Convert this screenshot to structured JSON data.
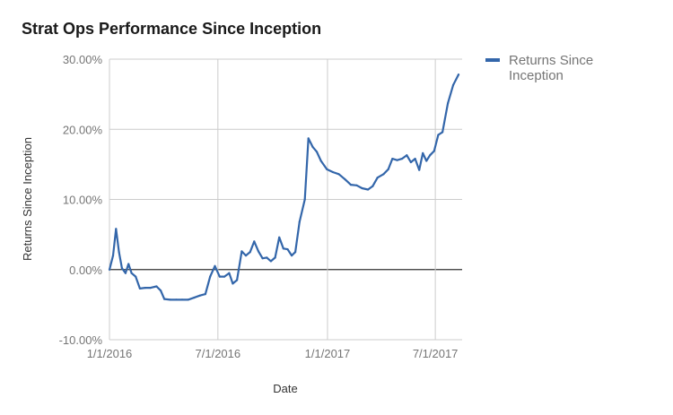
{
  "chart_data": {
    "type": "line",
    "title": "Strat Ops Performance Since Inception",
    "xlabel": "Date",
    "ylabel": "Returns Since Inception",
    "ylim": [
      -10,
      30
    ],
    "y_ticks": [
      "-10.00%",
      "0.00%",
      "10.00%",
      "20.00%",
      "30.00%"
    ],
    "x_ticks": [
      "1/1/2016",
      "7/1/2016",
      "1/1/2017",
      "7/1/2017"
    ],
    "x_range": [
      "2016-01-01",
      "2017-08-15"
    ],
    "grid": true,
    "legend_position": "right",
    "colors": {
      "series": "#3366aa",
      "grid": "#cccccc",
      "zero_line": "#333333"
    },
    "series": [
      {
        "name": "Returns Since Inception",
        "points": [
          [
            "2016-01-01",
            0.0
          ],
          [
            "2016-01-07",
            2.0
          ],
          [
            "2016-01-12",
            5.8
          ],
          [
            "2016-01-17",
            2.5
          ],
          [
            "2016-01-22",
            0.2
          ],
          [
            "2016-01-28",
            -0.5
          ],
          [
            "2016-02-02",
            0.8
          ],
          [
            "2016-02-07",
            -0.5
          ],
          [
            "2016-02-14",
            -1.0
          ],
          [
            "2016-02-21",
            -2.7
          ],
          [
            "2016-03-01",
            -2.6
          ],
          [
            "2016-03-10",
            -2.6
          ],
          [
            "2016-03-20",
            -2.4
          ],
          [
            "2016-03-27",
            -3.0
          ],
          [
            "2016-04-02",
            -4.2
          ],
          [
            "2016-04-12",
            -4.3
          ],
          [
            "2016-04-22",
            -4.3
          ],
          [
            "2016-05-02",
            -4.3
          ],
          [
            "2016-05-12",
            -4.3
          ],
          [
            "2016-05-22",
            -4.0
          ],
          [
            "2016-06-01",
            -3.7
          ],
          [
            "2016-06-10",
            -3.5
          ],
          [
            "2016-06-18",
            -1.0
          ],
          [
            "2016-06-26",
            0.5
          ],
          [
            "2016-07-04",
            -1.0
          ],
          [
            "2016-07-12",
            -1.0
          ],
          [
            "2016-07-20",
            -0.5
          ],
          [
            "2016-07-26",
            -2.0
          ],
          [
            "2016-08-02",
            -1.5
          ],
          [
            "2016-08-10",
            2.6
          ],
          [
            "2016-08-17",
            2.0
          ],
          [
            "2016-08-24",
            2.5
          ],
          [
            "2016-08-31",
            4.0
          ],
          [
            "2016-09-07",
            2.6
          ],
          [
            "2016-09-14",
            1.6
          ],
          [
            "2016-09-21",
            1.7
          ],
          [
            "2016-09-28",
            1.2
          ],
          [
            "2016-10-05",
            1.7
          ],
          [
            "2016-10-12",
            4.6
          ],
          [
            "2016-10-19",
            3.0
          ],
          [
            "2016-10-26",
            2.9
          ],
          [
            "2016-11-02",
            2.0
          ],
          [
            "2016-11-08",
            2.5
          ],
          [
            "2016-11-15",
            6.8
          ],
          [
            "2016-11-24",
            10.0
          ],
          [
            "2016-11-30",
            18.7
          ],
          [
            "2016-12-07",
            17.5
          ],
          [
            "2016-12-14",
            16.8
          ],
          [
            "2016-12-21",
            15.5
          ],
          [
            "2016-12-31",
            14.3
          ],
          [
            "2017-01-10",
            13.9
          ],
          [
            "2017-01-20",
            13.6
          ],
          [
            "2017-01-30",
            12.9
          ],
          [
            "2017-02-09",
            12.1
          ],
          [
            "2017-02-19",
            12.0
          ],
          [
            "2017-02-28",
            11.6
          ],
          [
            "2017-03-10",
            11.4
          ],
          [
            "2017-03-18",
            11.9
          ],
          [
            "2017-03-26",
            13.1
          ],
          [
            "2017-04-05",
            13.6
          ],
          [
            "2017-04-13",
            14.3
          ],
          [
            "2017-04-20",
            15.8
          ],
          [
            "2017-04-28",
            15.6
          ],
          [
            "2017-05-06",
            15.8
          ],
          [
            "2017-05-14",
            16.3
          ],
          [
            "2017-05-21",
            15.3
          ],
          [
            "2017-05-28",
            15.8
          ],
          [
            "2017-06-04",
            14.2
          ],
          [
            "2017-06-10",
            16.6
          ],
          [
            "2017-06-16",
            15.5
          ],
          [
            "2017-06-22",
            16.3
          ],
          [
            "2017-06-29",
            16.9
          ],
          [
            "2017-07-06",
            19.2
          ],
          [
            "2017-07-13",
            19.6
          ],
          [
            "2017-07-22",
            23.7
          ],
          [
            "2017-07-31",
            26.3
          ],
          [
            "2017-08-09",
            27.8
          ]
        ]
      }
    ]
  }
}
